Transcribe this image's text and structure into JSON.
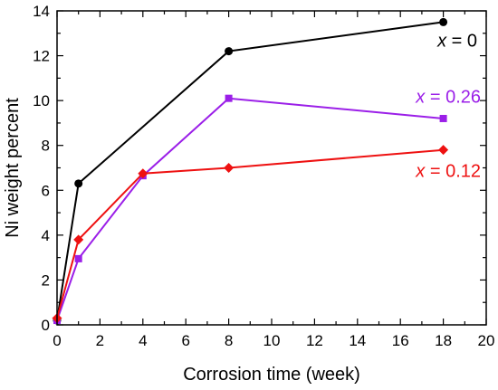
{
  "chart_data": {
    "type": "line",
    "title": "",
    "xlabel": "Corrosion time (week)",
    "ylabel": "Ni weight percent",
    "xlim": [
      0,
      20
    ],
    "ylim": [
      0,
      14
    ],
    "xticks": [
      0,
      2,
      4,
      6,
      8,
      10,
      12,
      14,
      16,
      18,
      20
    ],
    "yticks": [
      0,
      2,
      4,
      6,
      8,
      10,
      12,
      14
    ],
    "grid": false,
    "legend": "inline labels",
    "series": [
      {
        "name": "x = 0",
        "label_var": "x",
        "label_rest": " = 0",
        "color": "#000000",
        "marker": "circle",
        "x": [
          0,
          1,
          8,
          18
        ],
        "y": [
          0.2,
          6.3,
          12.2,
          13.5
        ]
      },
      {
        "name": "x = 0.26",
        "label_var": "x",
        "label_rest": " = 0.26",
        "color": "#9b1fe8",
        "marker": "square",
        "x": [
          0,
          1,
          4,
          8,
          18
        ],
        "y": [
          0.2,
          2.95,
          6.65,
          10.1,
          9.2
        ]
      },
      {
        "name": "x = 0.12",
        "label_var": "x",
        "label_rest": " = 0.12",
        "color": "#ee1111",
        "marker": "diamond",
        "x": [
          0,
          1,
          4,
          8,
          18
        ],
        "y": [
          0.3,
          3.8,
          6.75,
          7.0,
          7.8
        ]
      }
    ]
  }
}
